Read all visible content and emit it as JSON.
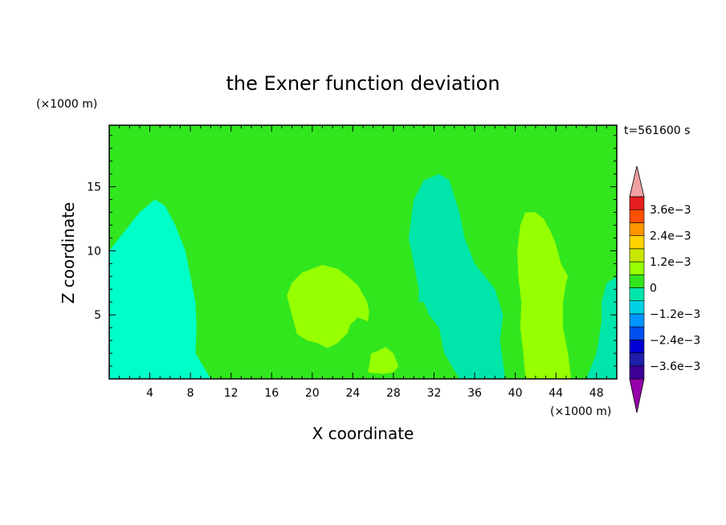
{
  "chart_data": {
    "type": "heatmap",
    "title": "the Exner function deviation",
    "xlabel": "X coordinate",
    "ylabel": "Z coordinate",
    "x_unit": "(×1000 m)",
    "y_unit": "(×1000 m)",
    "time_label": "t=561600 s",
    "xlim": [
      0,
      50
    ],
    "ylim": [
      0,
      19.8
    ],
    "x_ticks": [
      4,
      8,
      12,
      16,
      20,
      24,
      28,
      32,
      36,
      40,
      44,
      48
    ],
    "y_ticks": [
      5,
      10,
      15
    ],
    "colorbar": {
      "levels": [
        -0.0042,
        -0.0036,
        -0.003,
        -0.0024,
        -0.0018,
        -0.0012,
        -0.0006,
        0,
        0.0006,
        0.0012,
        0.0018,
        0.0024,
        0.003,
        0.0036,
        0.0042
      ],
      "colors": [
        "#3c0096",
        "#1e1eaa",
        "#0000d2",
        "#0050f0",
        "#0096ff",
        "#00d2e6",
        "#00e6aa",
        "#32e61e",
        "#96ff00",
        "#c8e600",
        "#ffd200",
        "#ff9600",
        "#ff5000",
        "#e61e1e"
      ],
      "under_color": "#9600aa",
      "over_color": "#f0a0a0",
      "tick_labels": [
        {
          "value": 0.0036,
          "label": "3.6e−3"
        },
        {
          "value": 0.0024,
          "label": "2.4e−3"
        },
        {
          "value": 0.0012,
          "label": "1.2e−3"
        },
        {
          "value": 0,
          "label": "0"
        },
        {
          "value": -0.0012,
          "label": "−1.2e−3"
        },
        {
          "value": -0.0024,
          "label": "−2.4e−3"
        },
        {
          "value": -0.0036,
          "label": "−3.6e−3"
        }
      ]
    },
    "regions": [
      {
        "value": -0.0011,
        "color": "#00ffc8",
        "outline": [
          [
            0,
            0
          ],
          [
            10,
            0
          ],
          [
            8.5,
            2
          ],
          [
            8.6,
            4
          ],
          [
            8.5,
            6
          ],
          [
            8,
            8
          ],
          [
            7.5,
            10
          ],
          [
            6.5,
            12
          ],
          [
            5.5,
            13.5
          ],
          [
            4.5,
            14
          ],
          [
            3,
            13
          ],
          [
            1,
            11
          ],
          [
            0,
            10
          ]
        ]
      },
      {
        "value": -0.0006,
        "color": "#00e6aa",
        "outline": [
          [
            47,
            0
          ],
          [
            50,
            0
          ],
          [
            50,
            8
          ],
          [
            49,
            7.5
          ],
          [
            48.5,
            6
          ],
          [
            48.5,
            4.5
          ],
          [
            48,
            2
          ]
        ]
      },
      {
        "value": 0.0002,
        "color": "#32e61e",
        "outline": [
          [
            15.8,
            0
          ],
          [
            46.5,
            0
          ],
          [
            46.7,
            3
          ],
          [
            46.5,
            6
          ],
          [
            47.5,
            9
          ],
          [
            48,
            11.5
          ],
          [
            48.5,
            14
          ],
          [
            48.5,
            16
          ],
          [
            48,
            18
          ],
          [
            47.8,
            19.8
          ],
          [
            15.3,
            19.8
          ],
          [
            15.5,
            18
          ],
          [
            15.3,
            16
          ],
          [
            14.7,
            14
          ],
          [
            15,
            11
          ],
          [
            14.7,
            8
          ],
          [
            15,
            5
          ],
          [
            15.2,
            2
          ]
        ]
      },
      {
        "value": -0.0006,
        "color": "#00e6aa",
        "outline": [
          [
            34.5,
            0
          ],
          [
            39,
            0
          ],
          [
            38.5,
            3
          ],
          [
            38.8,
            5
          ],
          [
            38,
            7
          ],
          [
            37,
            8
          ],
          [
            36,
            9
          ],
          [
            35,
            11
          ],
          [
            34.5,
            13
          ],
          [
            33.5,
            15.5
          ],
          [
            32.5,
            16
          ],
          [
            31,
            15.5
          ],
          [
            30,
            14
          ],
          [
            29.5,
            11
          ],
          [
            30,
            9
          ],
          [
            30.5,
            7
          ],
          [
            30.5,
            6
          ],
          [
            31,
            6
          ],
          [
            31.5,
            5
          ],
          [
            32.5,
            4
          ],
          [
            33,
            2
          ]
        ]
      },
      {
        "value": 0.0009,
        "color": "#96ff00",
        "outline": [
          [
            18,
            7.5
          ],
          [
            19,
            8.3
          ],
          [
            21,
            8.9
          ],
          [
            22.5,
            8.6
          ],
          [
            23.5,
            8
          ],
          [
            24.5,
            7.3
          ],
          [
            25.4,
            6
          ],
          [
            25.6,
            5.3
          ],
          [
            25.5,
            4.5
          ],
          [
            24.5,
            4.8
          ],
          [
            23.7,
            4.2
          ],
          [
            23.5,
            3.6
          ],
          [
            22.5,
            2.8
          ],
          [
            21.5,
            2.4
          ],
          [
            20.5,
            2.8
          ],
          [
            19.5,
            3
          ],
          [
            18.5,
            3.5
          ],
          [
            18,
            5
          ],
          [
            17.5,
            6.5
          ]
        ]
      },
      {
        "value": 0.0009,
        "color": "#96ff00",
        "outline": [
          [
            25.5,
            0.5
          ],
          [
            27,
            0.4
          ],
          [
            28,
            0.5
          ],
          [
            28.5,
            1
          ],
          [
            28,
            2
          ],
          [
            27.2,
            2.5
          ],
          [
            26.5,
            2.2
          ],
          [
            25.8,
            2
          ]
        ]
      },
      {
        "value": 0.0009,
        "color": "#96ff00",
        "outline": [
          [
            41,
            0
          ],
          [
            45.5,
            0
          ],
          [
            45.2,
            2
          ],
          [
            44.7,
            4
          ],
          [
            44.7,
            6
          ],
          [
            45,
            7.5
          ],
          [
            45.2,
            8
          ],
          [
            44.5,
            9
          ],
          [
            44,
            10.5
          ],
          [
            43.5,
            11.5
          ],
          [
            42.8,
            12.5
          ],
          [
            42,
            13
          ],
          [
            41,
            13
          ],
          [
            40.5,
            12
          ],
          [
            40.2,
            10
          ],
          [
            40.3,
            8
          ],
          [
            40.6,
            6
          ],
          [
            40.5,
            4
          ],
          [
            40.8,
            2
          ]
        ]
      }
    ]
  }
}
